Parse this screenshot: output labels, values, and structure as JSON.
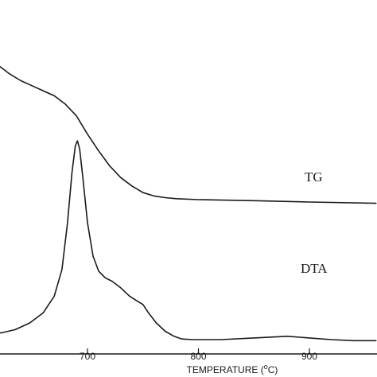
{
  "chart_data": {
    "type": "line",
    "xlabel": "TEMPERATURE (°C)",
    "xlabel_parts": [
      "TEMPERATURE (",
      "o",
      "C)"
    ],
    "xlim": [
      600,
      960
    ],
    "x_ticks": [
      700,
      800,
      900
    ],
    "y_ticks_shown": false,
    "series": [
      {
        "name": "TG",
        "points": [
          [
            600,
            0.97
          ],
          [
            605,
            0.94
          ],
          [
            612,
            0.9
          ],
          [
            620,
            0.87
          ],
          [
            630,
            0.845
          ],
          [
            640,
            0.825
          ],
          [
            650,
            0.81
          ],
          [
            660,
            0.795
          ],
          [
            670,
            0.78
          ],
          [
            680,
            0.755
          ],
          [
            690,
            0.72
          ],
          [
            700,
            0.665
          ],
          [
            710,
            0.615
          ],
          [
            720,
            0.57
          ],
          [
            730,
            0.535
          ],
          [
            740,
            0.51
          ],
          [
            750,
            0.49
          ],
          [
            760,
            0.48
          ],
          [
            770,
            0.475
          ],
          [
            780,
            0.472
          ],
          [
            800,
            0.469
          ],
          [
            850,
            0.466
          ],
          [
            900,
            0.462
          ],
          [
            960,
            0.458
          ]
        ]
      },
      {
        "name": "DTA",
        "points": [
          [
            600,
            0.12
          ],
          [
            605,
            0.09
          ],
          [
            612,
            0.075
          ],
          [
            622,
            0.07
          ],
          [
            635,
            0.08
          ],
          [
            648,
            0.1
          ],
          [
            660,
            0.13
          ],
          [
            670,
            0.18
          ],
          [
            677,
            0.26
          ],
          [
            682,
            0.4
          ],
          [
            686,
            0.55
          ],
          [
            689,
            0.63
          ],
          [
            691,
            0.645
          ],
          [
            693,
            0.62
          ],
          [
            696,
            0.53
          ],
          [
            700,
            0.4
          ],
          [
            705,
            0.3
          ],
          [
            710,
            0.255
          ],
          [
            716,
            0.235
          ],
          [
            722,
            0.225
          ],
          [
            730,
            0.205
          ],
          [
            738,
            0.18
          ],
          [
            745,
            0.165
          ],
          [
            750,
            0.155
          ],
          [
            755,
            0.13
          ],
          [
            762,
            0.1
          ],
          [
            770,
            0.075
          ],
          [
            778,
            0.06
          ],
          [
            785,
            0.052
          ],
          [
            795,
            0.05
          ],
          [
            820,
            0.05
          ],
          [
            850,
            0.055
          ],
          [
            880,
            0.06
          ],
          [
            900,
            0.055
          ],
          [
            920,
            0.05
          ],
          [
            940,
            0.047
          ],
          [
            960,
            0.047
          ]
        ]
      }
    ]
  }
}
